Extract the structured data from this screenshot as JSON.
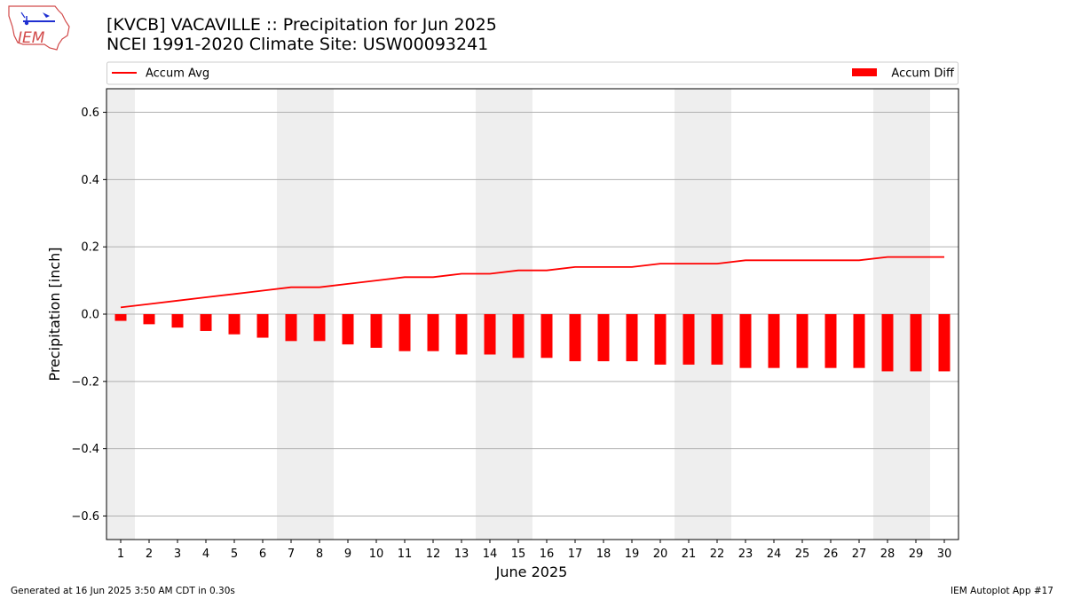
{
  "header": {
    "logo_text": "IEM",
    "title_line1": "[KVCB] VACAVILLE :: Precipitation for Jun 2025",
    "title_line2": "NCEI 1991-2020 Climate Site: USW00093241"
  },
  "footer": {
    "left": "Generated at 16 Jun 2025 3:50 AM CDT in 0.30s",
    "right": "IEM Autoplot App #17"
  },
  "colors": {
    "series": "#ff0000",
    "weekend_band": "#eeeeee",
    "grid": "#b0b0b0"
  },
  "chart_data": {
    "type": "bar",
    "xlabel": "June 2025",
    "ylabel": "Precipitation [inch]",
    "ylim": [
      -0.67,
      0.67
    ],
    "yticks": [
      0.6,
      0.4,
      0.2,
      0.0,
      -0.2,
      -0.4,
      -0.6
    ],
    "ytick_labels": [
      "0.6",
      "0.4",
      "0.2",
      "0.0",
      "−0.2",
      "−0.4",
      "−0.6"
    ],
    "grid": "horizontal",
    "legend_placement": "top",
    "categories": [
      "1",
      "2",
      "3",
      "4",
      "5",
      "6",
      "7",
      "8",
      "9",
      "10",
      "11",
      "12",
      "13",
      "14",
      "15",
      "16",
      "17",
      "18",
      "19",
      "20",
      "21",
      "22",
      "23",
      "24",
      "25",
      "26",
      "27",
      "28",
      "29",
      "30"
    ],
    "shaded_days": [
      1,
      7,
      8,
      14,
      15,
      21,
      22,
      28,
      29
    ],
    "series": [
      {
        "name": "Accum Avg",
        "type": "line",
        "values": [
          0.02,
          0.03,
          0.04,
          0.05,
          0.06,
          0.07,
          0.08,
          0.08,
          0.09,
          0.1,
          0.11,
          0.11,
          0.12,
          0.12,
          0.13,
          0.13,
          0.14,
          0.14,
          0.14,
          0.15,
          0.15,
          0.15,
          0.16,
          0.16,
          0.16,
          0.16,
          0.16,
          0.17,
          0.17,
          0.17
        ]
      },
      {
        "name": "Accum Diff",
        "type": "bar",
        "values": [
          -0.02,
          -0.03,
          -0.04,
          -0.05,
          -0.06,
          -0.07,
          -0.08,
          -0.08,
          -0.09,
          -0.1,
          -0.11,
          -0.11,
          -0.12,
          -0.12,
          -0.13,
          -0.13,
          -0.14,
          -0.14,
          -0.14,
          -0.15,
          -0.15,
          -0.15,
          -0.16,
          -0.16,
          -0.16,
          -0.16,
          -0.16,
          -0.17,
          -0.17,
          -0.17
        ]
      }
    ]
  }
}
